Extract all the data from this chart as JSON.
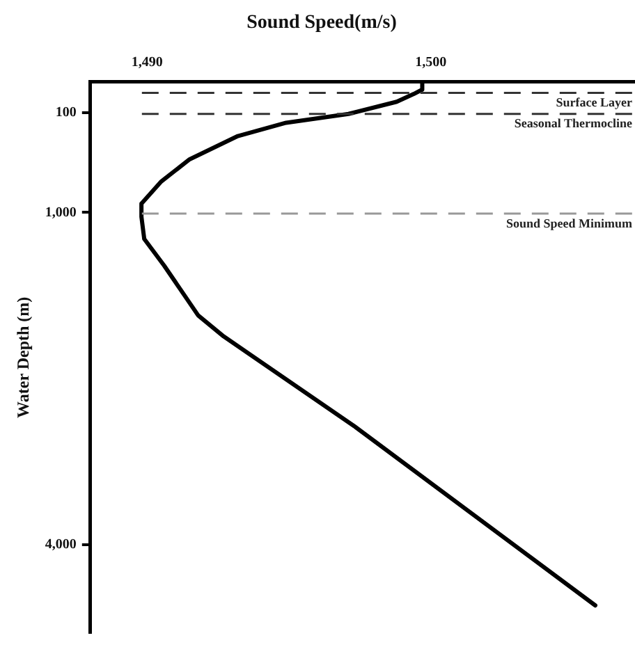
{
  "chart_data": {
    "type": "line",
    "title": "Sound Speed(m/s)",
    "ylabel": "Water Depth (m)",
    "series": [
      {
        "color": "#000000",
        "x": [
          1499.7,
          1499.7,
          1499.4,
          1498.8,
          1497.1,
          1494.9,
          1493.2,
          1491.5,
          1490.5,
          1489.8,
          1489.8,
          1489.9,
          1490.6,
          1491.8,
          1492.7,
          1497.3,
          1505.8
        ],
        "values": [
          -180,
          -110,
          -70,
          0,
          110,
          190,
          310,
          520,
          720,
          920,
          1040,
          1240,
          1480,
          1930,
          2120,
          2930,
          4550
        ]
      }
    ],
    "xlim": [
      1488,
      1507.2
    ],
    "xticks": [
      {
        "value": 1490,
        "label": "1,490"
      },
      {
        "value": 1500,
        "label": "1,500"
      }
    ],
    "ylim": [
      4800,
      -180
    ],
    "yticks": [
      {
        "value": 100,
        "label": "100"
      },
      {
        "value": 1000,
        "label": "1,000"
      },
      {
        "value": 4000,
        "label": "4,000"
      }
    ],
    "ref_lines": [
      {
        "axis": "y",
        "value": -80,
        "label": "Surface Layer",
        "color": "#333333",
        "line_style": "dashed"
      },
      {
        "axis": "y",
        "value": 110,
        "label": "Seasonal Thermocline",
        "color": "#333333",
        "line_style": "dashed"
      },
      {
        "axis": "y",
        "value": 1010,
        "label": "Sound Speed Minimum",
        "color": "#999999",
        "line_style": "dashed"
      }
    ],
    "grid": false,
    "legend": false,
    "marker": "none",
    "line_style": "solid"
  }
}
